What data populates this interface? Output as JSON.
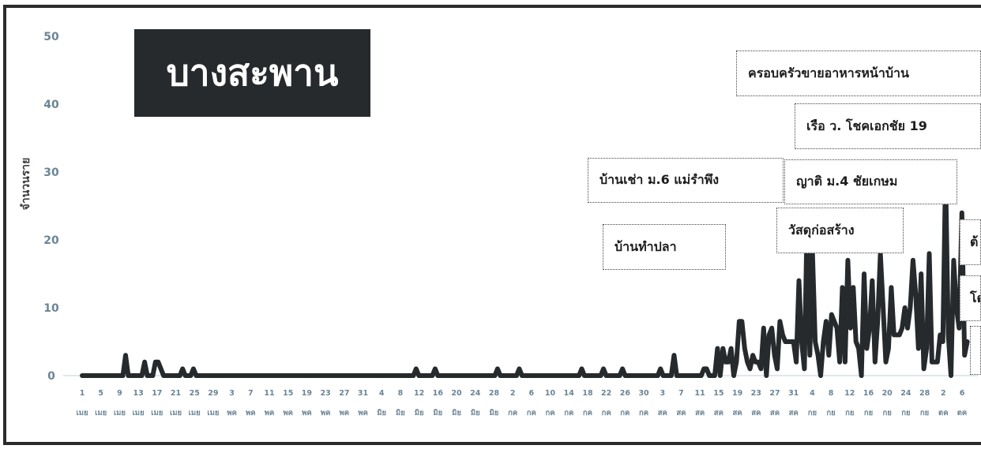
{
  "chart_data": {
    "type": "line",
    "title": "บางสะพาน",
    "ylabel": "จำนวนราย",
    "xlabel": "",
    "ylim": [
      0,
      50
    ],
    "yticks": [
      0,
      10,
      20,
      30,
      40,
      50
    ],
    "grid": false,
    "x_tick_days": [
      "1",
      "5",
      "9",
      "13",
      "17",
      "21",
      "25",
      "29",
      "3",
      "7",
      "11",
      "15",
      "19",
      "23",
      "27",
      "31",
      "4",
      "8",
      "12",
      "16",
      "20",
      "24",
      "28",
      "2",
      "6",
      "10",
      "14",
      "18",
      "22",
      "26",
      "30",
      "3",
      "7",
      "11",
      "15",
      "19",
      "23",
      "27",
      "31",
      "4",
      "8",
      "12",
      "16",
      "20",
      "24",
      "28",
      "2",
      "6"
    ],
    "x_tick_months": [
      "เมย",
      "เมย",
      "เมย",
      "เมย",
      "เมย",
      "เมย",
      "เมย",
      "เมย",
      "พค",
      "พค",
      "พค",
      "พค",
      "พค",
      "พค",
      "พค",
      "พค",
      "มิย",
      "มิย",
      "มิย",
      "มิย",
      "มิย",
      "มิย",
      "มิย",
      "กค",
      "กค",
      "กค",
      "กค",
      "กค",
      "กค",
      "กค",
      "กค",
      "สค",
      "สค",
      "สค",
      "สค",
      "สค",
      "สค",
      "สค",
      "สค",
      "กย",
      "กย",
      "กย",
      "กย",
      "กย",
      "กย",
      "กย",
      "ตค",
      "ตค"
    ],
    "series": [
      {
        "color": "#262a2d",
        "values": [
          0,
          0,
          0,
          0,
          0,
          0,
          0,
          0,
          0,
          0,
          0,
          0,
          0,
          0,
          0,
          0,
          3,
          0,
          0,
          0,
          0,
          0,
          0,
          2,
          0,
          0,
          0,
          2,
          2,
          1,
          0,
          0,
          0,
          0,
          0,
          0,
          0,
          1,
          0,
          0,
          0,
          1,
          0,
          0,
          0,
          0,
          0,
          0,
          0,
          0,
          0,
          0,
          0,
          0,
          0,
          0,
          0,
          0,
          0,
          0,
          0,
          0,
          0,
          0,
          0,
          0,
          0,
          0,
          0,
          0,
          0,
          0,
          0,
          0,
          0,
          0,
          0,
          0,
          0,
          0,
          0,
          0,
          0,
          0,
          0,
          0,
          0,
          0,
          0,
          0,
          0,
          0,
          0,
          0,
          0,
          0,
          0,
          0,
          0,
          0,
          0,
          0,
          0,
          0,
          0,
          0,
          0,
          0,
          0,
          0,
          0,
          0,
          0,
          0,
          0,
          0,
          0,
          0,
          0,
          0,
          0,
          0,
          0,
          1,
          0,
          0,
          0,
          0,
          0,
          0,
          1,
          0,
          0,
          0,
          0,
          0,
          0,
          0,
          0,
          0,
          0,
          0,
          0,
          0,
          0,
          0,
          0,
          0,
          0,
          0,
          0,
          0,
          0,
          1,
          0,
          0,
          0,
          0,
          0,
          0,
          0,
          1,
          0,
          0,
          0,
          0,
          0,
          0,
          0,
          0,
          0,
          0,
          0,
          0,
          0,
          0,
          0,
          0,
          0,
          0,
          0,
          0,
          0,
          0,
          1,
          0,
          0,
          0,
          0,
          0,
          0,
          0,
          1,
          0,
          0,
          0,
          0,
          0,
          0,
          1,
          0,
          0,
          0,
          0,
          0,
          0,
          0,
          0,
          0,
          0,
          0,
          0,
          0,
          1,
          0,
          0,
          0,
          0,
          3,
          0,
          0,
          0,
          0,
          0,
          0,
          0,
          0,
          0,
          0,
          1,
          1,
          0,
          0,
          0,
          4,
          0,
          4,
          2,
          2,
          4,
          0,
          2,
          8,
          8,
          4,
          2,
          1,
          3,
          2,
          2,
          1,
          7,
          0,
          6,
          7,
          3,
          1,
          8,
          6,
          5,
          5,
          5,
          5,
          2,
          14,
          5,
          1,
          23,
          3,
          18,
          5,
          3,
          0,
          5,
          8,
          3,
          9,
          8,
          7,
          2,
          13,
          2,
          17,
          7,
          13,
          5,
          4,
          0,
          15,
          4,
          7,
          14,
          2,
          8,
          18,
          10,
          2,
          4,
          13,
          6,
          6,
          6,
          7,
          10,
          7,
          10,
          17,
          12,
          4,
          15,
          1,
          4,
          18,
          2,
          2,
          2,
          6,
          5,
          30,
          6,
          0,
          17,
          10,
          7,
          24,
          3,
          5
        ]
      }
    ],
    "annotations": [
      "ครอบครัวขายอาหารหน้าบ้าน",
      "เรือ ว. โชคเอกชัย 19",
      "บ้านเช่า ม.6 แม่รำพึง",
      "ญาติ ม.4 ชัยเกษม",
      "วัสดุก่อสร้าง",
      "บ้านทำปลา",
      "ต้",
      "โด",
      ""
    ]
  }
}
